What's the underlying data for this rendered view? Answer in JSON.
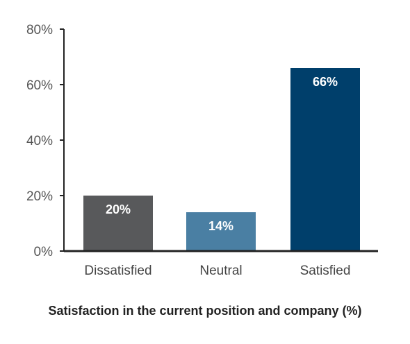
{
  "chart_data": {
    "type": "bar",
    "categories": [
      "Dissatisfied",
      "Neutral",
      "Satisfied"
    ],
    "values": [
      20,
      14,
      66
    ],
    "data_labels": [
      "20%",
      "14%",
      "66%"
    ],
    "colors": [
      "#58595b",
      "#4a7fa3",
      "#003f6b"
    ],
    "title": "Satisfaction in the current position and company (%)",
    "xlabel": "",
    "ylabel": "",
    "ylim": [
      0,
      80
    ],
    "yticks": [
      0,
      20,
      40,
      60,
      80
    ],
    "ytick_labels": [
      "0%",
      "20%",
      "40%",
      "60%",
      "80%"
    ],
    "grid": false,
    "legend": "none"
  }
}
